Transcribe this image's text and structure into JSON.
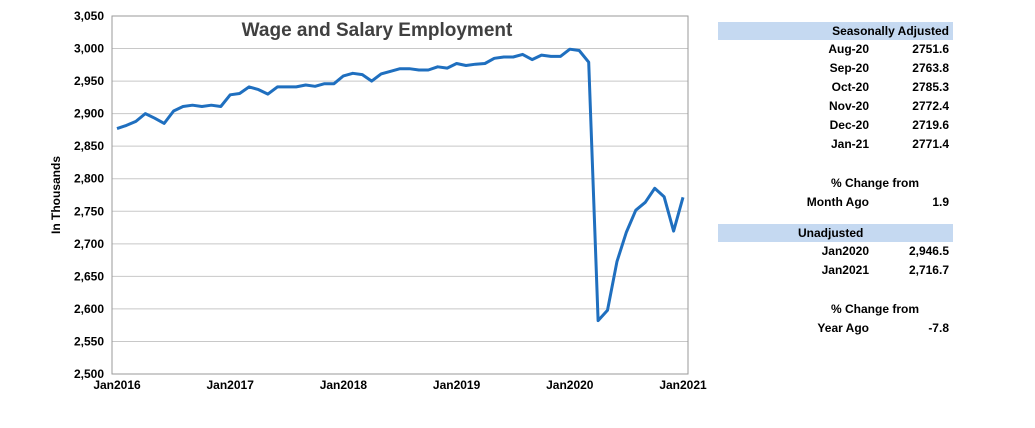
{
  "chart_data": {
    "type": "line",
    "title": "Wage and Salary Employment",
    "ylabel": "In Thousands",
    "xlabel": "",
    "ylim": [
      2500,
      3050
    ],
    "yticks": [
      2500,
      2550,
      2600,
      2650,
      2700,
      2750,
      2800,
      2850,
      2900,
      2950,
      3000,
      3050
    ],
    "ytick_labels": [
      "2,500",
      "2,550",
      "2,600",
      "2,650",
      "2,700",
      "2,750",
      "2,800",
      "2,850",
      "2,900",
      "2,950",
      "3,000",
      "3,050"
    ],
    "xtick_labels": [
      "Jan2016",
      "Jan2017",
      "Jan2018",
      "Jan2019",
      "Jan2020",
      "Jan2021"
    ],
    "grid": true,
    "line_color": "#1f6fbf",
    "x_start": "Jan 2016",
    "x_end": "Jan 2021",
    "series": [
      {
        "values": [
          2877,
          2882,
          2888,
          2900,
          2893,
          2885,
          2904,
          2911,
          2913,
          2911,
          2913,
          2911,
          2929,
          2931,
          2941,
          2937,
          2930,
          2941,
          2941,
          2941,
          2944,
          2942,
          2946,
          2946,
          2958,
          2962,
          2960,
          2950,
          2961,
          2965,
          2969,
          2969,
          2967,
          2967,
          2972,
          2970,
          2977,
          2974,
          2976,
          2977,
          2985,
          2987,
          2987,
          2991,
          2983,
          2990,
          2988,
          2988,
          2999,
          2997,
          2979,
          2582,
          2598,
          2673,
          2718,
          2751.6,
          2763.8,
          2785.3,
          2772.4,
          2719.6,
          2771.4
        ]
      }
    ]
  },
  "table": {
    "seasonal_header": "Seasonally Adjusted",
    "seasonal_rows": [
      {
        "label": "Aug-20",
        "value": "2751.6"
      },
      {
        "label": "Sep-20",
        "value": "2763.8"
      },
      {
        "label": "Oct-20",
        "value": "2785.3"
      },
      {
        "label": "Nov-20",
        "value": "2772.4"
      },
      {
        "label": "Dec-20",
        "value": "2719.6"
      },
      {
        "label": "Jan-21",
        "value": "2771.4"
      }
    ],
    "month_change_title": "% Change from",
    "month_change_label": "Month Ago",
    "month_change_value": "1.9",
    "unadjusted_header": "Unadjusted",
    "unadjusted_rows": [
      {
        "label": "Jan2020",
        "value": "2,946.5"
      },
      {
        "label": "Jan2021",
        "value": "2,716.7"
      }
    ],
    "year_change_title": "% Change from",
    "year_change_label": "Year Ago",
    "year_change_value": "-7.8"
  }
}
